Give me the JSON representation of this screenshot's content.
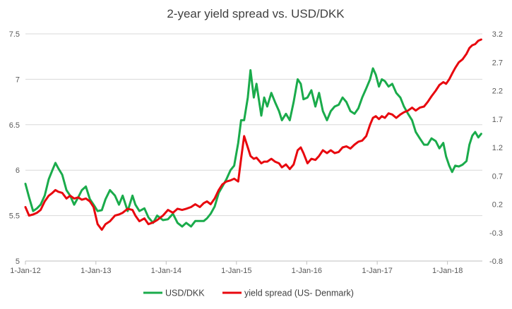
{
  "chart_data": {
    "type": "line",
    "title": "2-year yield spread vs. USD/DKK",
    "xlabel": "",
    "ylabel_left": "",
    "ylabel_right": "",
    "x_ticks": [
      "1-Jan-12",
      "1-Jan-13",
      "1-Jan-14",
      "1-Jan-15",
      "1-Jan-16",
      "1-Jan-17",
      "1-Jan-18"
    ],
    "left_axis": {
      "min": 5,
      "max": 7.5,
      "ticks": [
        "5",
        "5.5",
        "6",
        "6.5",
        "7",
        "7.5"
      ]
    },
    "right_axis": {
      "min": -0.8,
      "max": 3.2,
      "ticks": [
        "-0.8",
        "-0.3",
        "0.2",
        "0.7",
        "1.2",
        "1.7",
        "2.2",
        "2.7",
        "3.2"
      ]
    },
    "grid": true,
    "legend_position": "bottom",
    "x_range": [
      "2012-01-01",
      "2018-07-01"
    ],
    "series": [
      {
        "name": "USD/DKK",
        "axis": "left",
        "color": "#1aab4b",
        "points": [
          [
            "2012-01-01",
            5.85
          ],
          [
            "2012-01-20",
            5.7
          ],
          [
            "2012-02-10",
            5.55
          ],
          [
            "2012-03-01",
            5.58
          ],
          [
            "2012-03-20",
            5.62
          ],
          [
            "2012-04-10",
            5.72
          ],
          [
            "2012-05-01",
            5.9
          ],
          [
            "2012-05-20",
            6.0
          ],
          [
            "2012-06-05",
            6.08
          ],
          [
            "2012-06-20",
            6.02
          ],
          [
            "2012-07-10",
            5.95
          ],
          [
            "2012-08-01",
            5.78
          ],
          [
            "2012-08-20",
            5.72
          ],
          [
            "2012-09-10",
            5.62
          ],
          [
            "2012-10-01",
            5.7
          ],
          [
            "2012-10-20",
            5.78
          ],
          [
            "2012-11-10",
            5.82
          ],
          [
            "2012-12-01",
            5.68
          ],
          [
            "2012-12-20",
            5.62
          ],
          [
            "2013-01-10",
            5.55
          ],
          [
            "2013-02-01",
            5.56
          ],
          [
            "2013-02-20",
            5.68
          ],
          [
            "2013-03-15",
            5.78
          ],
          [
            "2013-04-10",
            5.72
          ],
          [
            "2013-05-01",
            5.62
          ],
          [
            "2013-05-20",
            5.72
          ],
          [
            "2013-06-15",
            5.55
          ],
          [
            "2013-07-10",
            5.72
          ],
          [
            "2013-07-25",
            5.62
          ],
          [
            "2013-08-15",
            5.55
          ],
          [
            "2013-09-10",
            5.58
          ],
          [
            "2013-10-01",
            5.48
          ],
          [
            "2013-10-25",
            5.42
          ],
          [
            "2013-11-15",
            5.5
          ],
          [
            "2013-12-15",
            5.45
          ],
          [
            "2014-01-10",
            5.46
          ],
          [
            "2014-02-05",
            5.52
          ],
          [
            "2014-03-01",
            5.42
          ],
          [
            "2014-03-25",
            5.38
          ],
          [
            "2014-04-15",
            5.42
          ],
          [
            "2014-05-10",
            5.38
          ],
          [
            "2014-06-01",
            5.44
          ],
          [
            "2014-06-25",
            5.44
          ],
          [
            "2014-07-15",
            5.44
          ],
          [
            "2014-08-01",
            5.47
          ],
          [
            "2014-08-20",
            5.52
          ],
          [
            "2014-09-10",
            5.6
          ],
          [
            "2014-10-01",
            5.75
          ],
          [
            "2014-10-20",
            5.82
          ],
          [
            "2014-11-10",
            5.9
          ],
          [
            "2014-12-01",
            6.0
          ],
          [
            "2014-12-20",
            6.05
          ],
          [
            "2015-01-10",
            6.3
          ],
          [
            "2015-01-25",
            6.55
          ],
          [
            "2015-02-10",
            6.55
          ],
          [
            "2015-03-01",
            6.8
          ],
          [
            "2015-03-15",
            7.1
          ],
          [
            "2015-04-01",
            6.8
          ],
          [
            "2015-04-15",
            6.95
          ],
          [
            "2015-05-10",
            6.6
          ],
          [
            "2015-05-25",
            6.8
          ],
          [
            "2015-06-10",
            6.7
          ],
          [
            "2015-07-01",
            6.85
          ],
          [
            "2015-07-20",
            6.75
          ],
          [
            "2015-08-10",
            6.65
          ],
          [
            "2015-08-25",
            6.55
          ],
          [
            "2015-09-15",
            6.62
          ],
          [
            "2015-10-05",
            6.55
          ],
          [
            "2015-10-25",
            6.75
          ],
          [
            "2015-11-15",
            7.0
          ],
          [
            "2015-12-01",
            6.95
          ],
          [
            "2015-12-15",
            6.78
          ],
          [
            "2016-01-05",
            6.8
          ],
          [
            "2016-01-25",
            6.88
          ],
          [
            "2016-02-15",
            6.7
          ],
          [
            "2016-03-05",
            6.85
          ],
          [
            "2016-03-25",
            6.65
          ],
          [
            "2016-04-15",
            6.55
          ],
          [
            "2016-05-05",
            6.65
          ],
          [
            "2016-05-25",
            6.7
          ],
          [
            "2016-06-15",
            6.72
          ],
          [
            "2016-07-05",
            6.8
          ],
          [
            "2016-07-25",
            6.75
          ],
          [
            "2016-08-15",
            6.65
          ],
          [
            "2016-09-05",
            6.62
          ],
          [
            "2016-09-25",
            6.68
          ],
          [
            "2016-10-15",
            6.8
          ],
          [
            "2016-11-05",
            6.9
          ],
          [
            "2016-11-25",
            7.0
          ],
          [
            "2016-12-10",
            7.12
          ],
          [
            "2016-12-25",
            7.05
          ],
          [
            "2017-01-10",
            6.92
          ],
          [
            "2017-01-25",
            7.0
          ],
          [
            "2017-02-10",
            6.98
          ],
          [
            "2017-03-01",
            6.92
          ],
          [
            "2017-03-20",
            6.95
          ],
          [
            "2017-04-10",
            6.85
          ],
          [
            "2017-05-01",
            6.8
          ],
          [
            "2017-05-20",
            6.7
          ],
          [
            "2017-06-10",
            6.62
          ],
          [
            "2017-07-01",
            6.55
          ],
          [
            "2017-07-20",
            6.42
          ],
          [
            "2017-08-10",
            6.35
          ],
          [
            "2017-09-01",
            6.28
          ],
          [
            "2017-09-20",
            6.28
          ],
          [
            "2017-10-10",
            6.35
          ],
          [
            "2017-11-01",
            6.32
          ],
          [
            "2017-11-20",
            6.24
          ],
          [
            "2017-12-10",
            6.3
          ],
          [
            "2017-12-25",
            6.15
          ],
          [
            "2018-01-10",
            6.05
          ],
          [
            "2018-01-25",
            5.98
          ],
          [
            "2018-02-10",
            6.05
          ],
          [
            "2018-03-01",
            6.04
          ],
          [
            "2018-03-20",
            6.06
          ],
          [
            "2018-04-10",
            6.1
          ],
          [
            "2018-04-25",
            6.28
          ],
          [
            "2018-05-10",
            6.38
          ],
          [
            "2018-05-25",
            6.42
          ],
          [
            "2018-06-10",
            6.36
          ],
          [
            "2018-06-25",
            6.4
          ]
        ]
      },
      {
        "name": "yield spread (US- Denmark)",
        "axis": "right",
        "color": "#e8070e",
        "points": [
          [
            "2012-01-01",
            0.15
          ],
          [
            "2012-01-20",
            0.0
          ],
          [
            "2012-02-10",
            0.02
          ],
          [
            "2012-03-01",
            0.05
          ],
          [
            "2012-03-20",
            0.1
          ],
          [
            "2012-04-10",
            0.25
          ],
          [
            "2012-05-01",
            0.35
          ],
          [
            "2012-05-20",
            0.4
          ],
          [
            "2012-06-05",
            0.45
          ],
          [
            "2012-06-20",
            0.42
          ],
          [
            "2012-07-10",
            0.4
          ],
          [
            "2012-08-01",
            0.3
          ],
          [
            "2012-08-20",
            0.35
          ],
          [
            "2012-09-10",
            0.3
          ],
          [
            "2012-10-01",
            0.32
          ],
          [
            "2012-10-20",
            0.28
          ],
          [
            "2012-11-10",
            0.3
          ],
          [
            "2012-12-01",
            0.25
          ],
          [
            "2012-12-20",
            0.15
          ],
          [
            "2013-01-10",
            -0.15
          ],
          [
            "2013-02-01",
            -0.25
          ],
          [
            "2013-02-20",
            -0.15
          ],
          [
            "2013-03-15",
            -0.1
          ],
          [
            "2013-04-10",
            0.0
          ],
          [
            "2013-05-01",
            0.02
          ],
          [
            "2013-05-20",
            0.05
          ],
          [
            "2013-06-15",
            0.12
          ],
          [
            "2013-07-10",
            0.1
          ],
          [
            "2013-07-25",
            0.0
          ],
          [
            "2013-08-15",
            -0.1
          ],
          [
            "2013-09-10",
            -0.05
          ],
          [
            "2013-10-01",
            -0.15
          ],
          [
            "2013-10-25",
            -0.12
          ],
          [
            "2013-11-15",
            -0.08
          ],
          [
            "2013-12-15",
            0.0
          ],
          [
            "2014-01-10",
            0.1
          ],
          [
            "2014-02-05",
            0.05
          ],
          [
            "2014-03-01",
            0.12
          ],
          [
            "2014-03-25",
            0.1
          ],
          [
            "2014-04-15",
            0.12
          ],
          [
            "2014-05-10",
            0.15
          ],
          [
            "2014-06-01",
            0.2
          ],
          [
            "2014-06-25",
            0.15
          ],
          [
            "2014-07-15",
            0.22
          ],
          [
            "2014-08-01",
            0.25
          ],
          [
            "2014-08-20",
            0.2
          ],
          [
            "2014-09-10",
            0.3
          ],
          [
            "2014-10-01",
            0.45
          ],
          [
            "2014-10-20",
            0.55
          ],
          [
            "2014-11-10",
            0.6
          ],
          [
            "2014-12-01",
            0.62
          ],
          [
            "2014-12-20",
            0.65
          ],
          [
            "2015-01-10",
            0.6
          ],
          [
            "2015-01-25",
            1.0
          ],
          [
            "2015-02-10",
            1.4
          ],
          [
            "2015-03-01",
            1.2
          ],
          [
            "2015-03-15",
            1.05
          ],
          [
            "2015-04-01",
            1.0
          ],
          [
            "2015-04-15",
            1.02
          ],
          [
            "2015-05-10",
            0.92
          ],
          [
            "2015-05-25",
            0.95
          ],
          [
            "2015-06-10",
            0.95
          ],
          [
            "2015-07-01",
            1.0
          ],
          [
            "2015-07-20",
            0.95
          ],
          [
            "2015-08-10",
            0.92
          ],
          [
            "2015-08-25",
            0.85
          ],
          [
            "2015-09-15",
            0.9
          ],
          [
            "2015-10-05",
            0.82
          ],
          [
            "2015-10-25",
            0.9
          ],
          [
            "2015-11-15",
            1.15
          ],
          [
            "2015-12-01",
            1.2
          ],
          [
            "2015-12-15",
            1.1
          ],
          [
            "2016-01-05",
            0.92
          ],
          [
            "2016-01-25",
            1.0
          ],
          [
            "2016-02-15",
            0.98
          ],
          [
            "2016-03-05",
            1.05
          ],
          [
            "2016-03-25",
            1.15
          ],
          [
            "2016-04-15",
            1.1
          ],
          [
            "2016-05-05",
            1.15
          ],
          [
            "2016-05-25",
            1.1
          ],
          [
            "2016-06-15",
            1.12
          ],
          [
            "2016-07-05",
            1.2
          ],
          [
            "2016-07-25",
            1.22
          ],
          [
            "2016-08-15",
            1.18
          ],
          [
            "2016-09-05",
            1.25
          ],
          [
            "2016-09-25",
            1.3
          ],
          [
            "2016-10-15",
            1.32
          ],
          [
            "2016-11-05",
            1.4
          ],
          [
            "2016-11-25",
            1.6
          ],
          [
            "2016-12-10",
            1.72
          ],
          [
            "2016-12-25",
            1.75
          ],
          [
            "2017-01-10",
            1.7
          ],
          [
            "2017-01-25",
            1.75
          ],
          [
            "2017-02-10",
            1.72
          ],
          [
            "2017-03-01",
            1.8
          ],
          [
            "2017-03-20",
            1.78
          ],
          [
            "2017-04-10",
            1.72
          ],
          [
            "2017-05-01",
            1.78
          ],
          [
            "2017-05-20",
            1.82
          ],
          [
            "2017-06-10",
            1.85
          ],
          [
            "2017-07-01",
            1.9
          ],
          [
            "2017-07-20",
            1.85
          ],
          [
            "2017-08-10",
            1.9
          ],
          [
            "2017-09-01",
            1.92
          ],
          [
            "2017-09-20",
            2.0
          ],
          [
            "2017-10-10",
            2.1
          ],
          [
            "2017-11-01",
            2.2
          ],
          [
            "2017-11-20",
            2.3
          ],
          [
            "2017-12-10",
            2.35
          ],
          [
            "2017-12-25",
            2.32
          ],
          [
            "2018-01-10",
            2.4
          ],
          [
            "2018-01-25",
            2.5
          ],
          [
            "2018-02-10",
            2.6
          ],
          [
            "2018-03-01",
            2.7
          ],
          [
            "2018-03-20",
            2.75
          ],
          [
            "2018-04-10",
            2.85
          ],
          [
            "2018-04-25",
            2.95
          ],
          [
            "2018-05-10",
            3.0
          ],
          [
            "2018-05-25",
            3.02
          ],
          [
            "2018-06-10",
            3.08
          ],
          [
            "2018-06-25",
            3.1
          ]
        ]
      }
    ]
  }
}
